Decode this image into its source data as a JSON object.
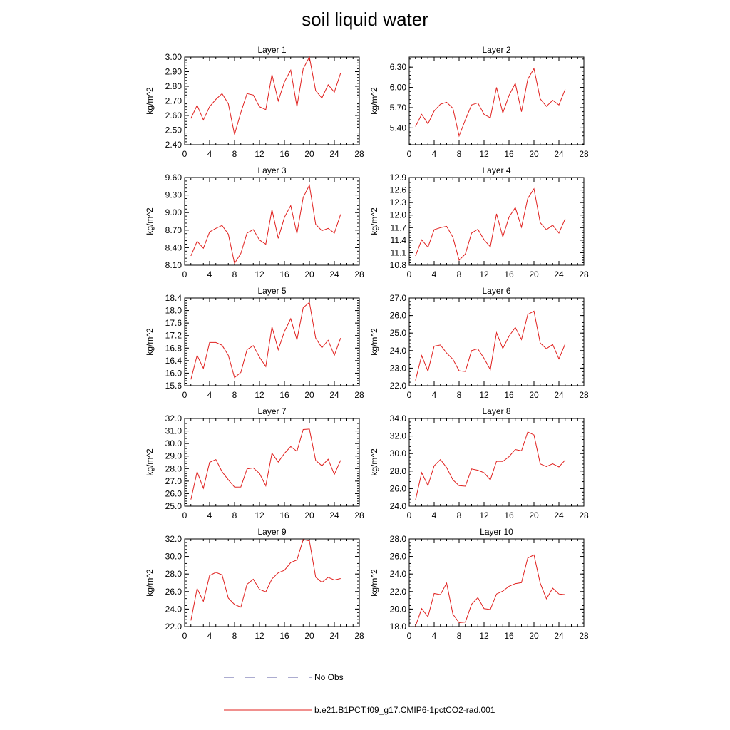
{
  "title": "soil liquid water",
  "legend": {
    "no_obs_label": "No Obs",
    "model_label": "b.e21.B1PCT.f09_g17.CMIP6-1pctCO2-rad.001",
    "no_obs_color": "#5a5aa0",
    "model_color": "#e0201e"
  },
  "chart_data": [
    {
      "type": "line",
      "title": "Layer 1",
      "ylabel": "kg/m^2",
      "xlim": [
        0,
        28
      ],
      "xticks": [
        0,
        4,
        8,
        12,
        16,
        20,
        24,
        28
      ],
      "ylim": [
        2.4,
        3.0
      ],
      "yticks": [
        "2.40",
        "2.50",
        "2.60",
        "2.70",
        "2.80",
        "2.90",
        "3.00"
      ],
      "x": [
        1,
        2,
        3,
        4,
        5,
        6,
        7,
        8,
        9,
        10,
        11,
        12,
        13,
        14,
        15,
        16,
        17,
        18,
        19,
        20,
        21,
        22,
        23,
        24,
        25
      ],
      "y": [
        2.58,
        2.67,
        2.57,
        2.66,
        2.71,
        2.75,
        2.68,
        2.47,
        2.62,
        2.75,
        2.74,
        2.66,
        2.64,
        2.88,
        2.7,
        2.83,
        2.91,
        2.66,
        2.92,
        3.0,
        2.77,
        2.72,
        2.81,
        2.76,
        2.89
      ]
    },
    {
      "type": "line",
      "title": "Layer 2",
      "ylabel": "kg/m^2",
      "xlim": [
        0,
        28
      ],
      "xticks": [
        0,
        4,
        8,
        12,
        16,
        20,
        24,
        28
      ],
      "ylim": [
        5.15,
        6.45
      ],
      "yticks": [
        "5.40",
        "5.70",
        "6.00",
        "6.30"
      ],
      "x": [
        1,
        2,
        3,
        4,
        5,
        6,
        7,
        8,
        9,
        10,
        11,
        12,
        13,
        14,
        15,
        16,
        17,
        18,
        19,
        20,
        21,
        22,
        23,
        24,
        25
      ],
      "y": [
        5.42,
        5.6,
        5.46,
        5.65,
        5.75,
        5.78,
        5.69,
        5.28,
        5.52,
        5.74,
        5.77,
        5.6,
        5.55,
        6.0,
        5.62,
        5.88,
        6.06,
        5.64,
        6.12,
        6.28,
        5.83,
        5.72,
        5.81,
        5.74,
        5.97
      ]
    },
    {
      "type": "line",
      "title": "Layer 3",
      "ylabel": "kg/m^2",
      "xlim": [
        0,
        28
      ],
      "xticks": [
        0,
        4,
        8,
        12,
        16,
        20,
        24,
        28
      ],
      "ylim": [
        8.1,
        9.6
      ],
      "yticks": [
        "8.10",
        "8.40",
        "8.70",
        "9.00",
        "9.30",
        "9.60"
      ],
      "x": [
        1,
        2,
        3,
        4,
        5,
        6,
        7,
        8,
        9,
        10,
        11,
        12,
        13,
        14,
        15,
        16,
        17,
        18,
        19,
        20,
        21,
        22,
        23,
        24,
        25
      ],
      "y": [
        8.26,
        8.51,
        8.39,
        8.67,
        8.73,
        8.78,
        8.63,
        8.13,
        8.3,
        8.65,
        8.71,
        8.53,
        8.46,
        9.05,
        8.56,
        8.92,
        9.12,
        8.64,
        9.26,
        9.47,
        8.8,
        8.69,
        8.73,
        8.65,
        8.97
      ]
    },
    {
      "type": "line",
      "title": "Layer 4",
      "ylabel": "kg/m^2",
      "xlim": [
        0,
        28
      ],
      "xticks": [
        0,
        4,
        8,
        12,
        16,
        20,
        24,
        28
      ],
      "ylim": [
        10.8,
        12.9
      ],
      "yticks": [
        "10.8",
        "11.1",
        "11.4",
        "11.7",
        "12.0",
        "12.3",
        "12.6",
        "12.9"
      ],
      "x": [
        1,
        2,
        3,
        4,
        5,
        6,
        7,
        8,
        9,
        10,
        11,
        12,
        13,
        14,
        15,
        16,
        17,
        18,
        19,
        20,
        21,
        22,
        23,
        24,
        25
      ],
      "y": [
        11.02,
        11.41,
        11.23,
        11.65,
        11.7,
        11.73,
        11.47,
        10.92,
        11.07,
        11.57,
        11.66,
        11.41,
        11.24,
        12.03,
        11.48,
        11.95,
        12.18,
        11.71,
        12.4,
        12.63,
        11.82,
        11.65,
        11.76,
        11.57,
        11.91
      ]
    },
    {
      "type": "line",
      "title": "Layer 5",
      "ylabel": "kg/m^2",
      "xlim": [
        0,
        28
      ],
      "xticks": [
        0,
        4,
        8,
        12,
        16,
        20,
        24,
        28
      ],
      "ylim": [
        15.6,
        18.4
      ],
      "yticks": [
        "15.6",
        "16.0",
        "16.4",
        "16.8",
        "17.2",
        "17.6",
        "18.0",
        "18.4"
      ],
      "x": [
        1,
        2,
        3,
        4,
        5,
        6,
        7,
        8,
        9,
        10,
        11,
        12,
        13,
        14,
        15,
        16,
        17,
        18,
        19,
        20,
        21,
        22,
        23,
        24,
        25
      ],
      "y": [
        15.8,
        16.57,
        16.15,
        16.98,
        16.98,
        16.89,
        16.57,
        15.86,
        16.02,
        16.75,
        16.88,
        16.51,
        16.21,
        17.48,
        16.75,
        17.33,
        17.74,
        17.06,
        18.09,
        18.26,
        17.12,
        16.81,
        17.05,
        16.57,
        17.12
      ]
    },
    {
      "type": "line",
      "title": "Layer 6",
      "ylabel": "kg/m^2",
      "xlim": [
        0,
        28
      ],
      "xticks": [
        0,
        4,
        8,
        12,
        16,
        20,
        24,
        28
      ],
      "ylim": [
        22.0,
        27.0
      ],
      "yticks": [
        "22.0",
        "23.0",
        "24.0",
        "25.0",
        "26.0",
        "27.0"
      ],
      "x": [
        1,
        2,
        3,
        4,
        5,
        6,
        7,
        8,
        9,
        10,
        11,
        12,
        13,
        14,
        15,
        16,
        17,
        18,
        19,
        20,
        21,
        22,
        23,
        24,
        25
      ],
      "y": [
        22.3,
        23.72,
        22.82,
        24.25,
        24.32,
        23.86,
        23.51,
        22.85,
        22.81,
        24.0,
        24.1,
        23.56,
        22.91,
        25.02,
        24.12,
        24.82,
        25.32,
        24.63,
        26.06,
        26.25,
        24.43,
        24.11,
        24.35,
        23.53,
        24.38
      ]
    },
    {
      "type": "line",
      "title": "Layer 7",
      "ylabel": "kg/m^2",
      "xlim": [
        0,
        28
      ],
      "xticks": [
        0,
        4,
        8,
        12,
        16,
        20,
        24,
        28
      ],
      "ylim": [
        25.0,
        32.0
      ],
      "yticks": [
        "25.0",
        "26.0",
        "27.0",
        "28.0",
        "29.0",
        "30.0",
        "31.0",
        "32.0"
      ],
      "x": [
        1,
        2,
        3,
        4,
        5,
        6,
        7,
        8,
        9,
        10,
        11,
        12,
        13,
        14,
        15,
        16,
        17,
        18,
        19,
        20,
        21,
        22,
        23,
        24,
        25
      ],
      "y": [
        25.53,
        27.75,
        26.43,
        28.5,
        28.72,
        27.75,
        27.1,
        26.52,
        26.53,
        27.97,
        28.05,
        27.62,
        26.62,
        29.23,
        28.52,
        29.21,
        29.76,
        29.38,
        31.12,
        31.15,
        28.66,
        28.22,
        28.75,
        27.53,
        28.66
      ]
    },
    {
      "type": "line",
      "title": "Layer 8",
      "ylabel": "kg/m^2",
      "xlim": [
        0,
        28
      ],
      "xticks": [
        0,
        4,
        8,
        12,
        16,
        20,
        24,
        28
      ],
      "ylim": [
        24.0,
        34.0
      ],
      "yticks": [
        "24.0",
        "26.0",
        "28.0",
        "30.0",
        "32.0",
        "34.0"
      ],
      "x": [
        1,
        2,
        3,
        4,
        5,
        6,
        7,
        8,
        9,
        10,
        11,
        12,
        13,
        14,
        15,
        16,
        17,
        18,
        19,
        20,
        21,
        22,
        23,
        24,
        25
      ],
      "y": [
        24.68,
        27.82,
        26.35,
        28.6,
        29.32,
        28.4,
        27.0,
        26.33,
        26.28,
        28.24,
        28.1,
        27.82,
        27.0,
        29.12,
        29.1,
        29.64,
        30.46,
        30.31,
        32.46,
        32.12,
        28.82,
        28.52,
        28.83,
        28.47,
        29.26
      ]
    },
    {
      "type": "line",
      "title": "Layer 9",
      "ylabel": "kg/m^2",
      "xlim": [
        0,
        28
      ],
      "xticks": [
        0,
        4,
        8,
        12,
        16,
        20,
        24,
        28
      ],
      "ylim": [
        22.0,
        32.0
      ],
      "yticks": [
        "22.0",
        "24.0",
        "26.0",
        "28.0",
        "30.0",
        "32.0"
      ],
      "x": [
        1,
        2,
        3,
        4,
        5,
        6,
        7,
        8,
        9,
        10,
        11,
        12,
        13,
        14,
        15,
        16,
        17,
        18,
        19,
        20,
        21,
        22,
        23,
        24,
        25
      ],
      "y": [
        22.7,
        26.35,
        24.89,
        27.82,
        28.19,
        27.9,
        25.25,
        24.52,
        24.22,
        26.83,
        27.41,
        26.25,
        25.97,
        27.45,
        28.14,
        28.42,
        29.3,
        29.6,
        31.93,
        31.78,
        27.64,
        27.05,
        27.63,
        27.32,
        27.49
      ]
    },
    {
      "type": "line",
      "title": "Layer 10",
      "ylabel": "kg/m^2",
      "xlim": [
        0,
        28
      ],
      "xticks": [
        0,
        4,
        8,
        12,
        16,
        20,
        24,
        28
      ],
      "ylim": [
        18.0,
        28.0
      ],
      "yticks": [
        "18.0",
        "20.0",
        "22.0",
        "24.0",
        "26.0",
        "28.0"
      ],
      "x": [
        1,
        2,
        3,
        4,
        5,
        6,
        7,
        8,
        9,
        10,
        11,
        12,
        13,
        14,
        15,
        16,
        17,
        18,
        19,
        20,
        21,
        22,
        23,
        24,
        25
      ],
      "y": [
        18.05,
        20.05,
        19.12,
        21.78,
        21.65,
        22.97,
        19.42,
        18.45,
        18.52,
        20.55,
        21.31,
        20.05,
        19.95,
        21.72,
        22.05,
        22.6,
        22.9,
        23.02,
        25.82,
        26.18,
        22.95,
        21.18,
        22.38,
        21.72,
        21.65
      ]
    }
  ]
}
